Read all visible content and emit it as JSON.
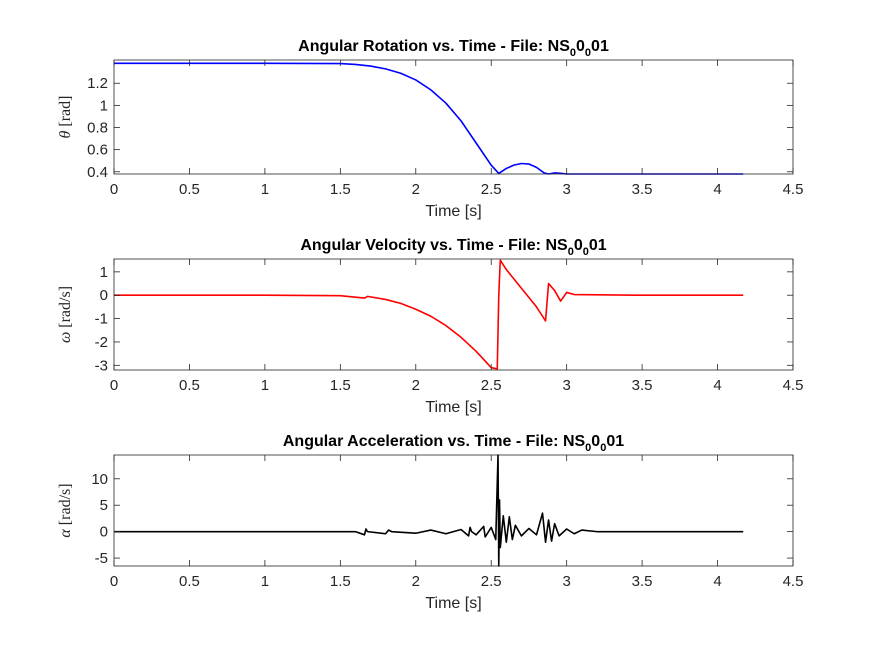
{
  "file_name": "NS_0_0_01",
  "chart_data": [
    {
      "type": "line",
      "title_main": "Angular Rotation vs. Time - File: NS",
      "title_sub1": "0",
      "title_mid": "0",
      "title_sub2": "0",
      "title_end": "01",
      "xlabel": "Time [s]",
      "ylabel_symbol": "θ",
      "ylabel_unit": "[rad]",
      "xlim": [
        0,
        4.5
      ],
      "ylim": [
        0.38,
        1.41
      ],
      "xticks": [
        "0",
        "0.5",
        "1",
        "1.5",
        "2",
        "2.5",
        "3",
        "3.5",
        "4",
        "4.5"
      ],
      "yticks": [
        "0.4",
        "0.6",
        "0.8",
        "1",
        "1.2"
      ],
      "series": [
        {
          "name": "theta",
          "color": "#0000ff",
          "x": [
            0,
            0.5,
            1.0,
            1.5,
            1.6,
            1.7,
            1.8,
            1.9,
            2.0,
            2.1,
            2.2,
            2.3,
            2.4,
            2.5,
            2.55,
            2.6,
            2.65,
            2.7,
            2.75,
            2.8,
            2.85,
            2.88,
            2.92,
            2.96,
            3.0,
            3.5,
            4.17
          ],
          "y": [
            1.38,
            1.38,
            1.38,
            1.378,
            1.37,
            1.355,
            1.33,
            1.29,
            1.23,
            1.14,
            1.02,
            0.86,
            0.66,
            0.46,
            0.385,
            0.43,
            0.46,
            0.475,
            0.47,
            0.44,
            0.39,
            0.38,
            0.39,
            0.386,
            0.38,
            0.38,
            0.38
          ]
        }
      ]
    },
    {
      "type": "line",
      "title_main": "Angular Velocity vs. Time - File: NS",
      "title_sub1": "0",
      "title_mid": "0",
      "title_sub2": "0",
      "title_end": "01",
      "xlabel": "Time [s]",
      "ylabel_symbol": "ω",
      "ylabel_unit": "[rad/s]",
      "xlim": [
        0,
        4.5
      ],
      "ylim": [
        -3.2,
        1.55
      ],
      "xticks": [
        "0",
        "0.5",
        "1",
        "1.5",
        "2",
        "2.5",
        "3",
        "3.5",
        "4",
        "4.5"
      ],
      "yticks": [
        "-3",
        "-2",
        "-1",
        "0",
        "1"
      ],
      "series": [
        {
          "name": "omega",
          "color": "#ff0000",
          "x": [
            0,
            1.0,
            1.5,
            1.66,
            1.68,
            1.8,
            1.9,
            2.0,
            2.1,
            2.2,
            2.3,
            2.4,
            2.45,
            2.5,
            2.54,
            2.55,
            2.56,
            2.6,
            2.65,
            2.7,
            2.75,
            2.8,
            2.84,
            2.86,
            2.88,
            2.92,
            2.96,
            3.0,
            3.05,
            3.5,
            4.17
          ],
          "y": [
            0,
            0,
            -0.02,
            -0.12,
            -0.05,
            -0.18,
            -0.35,
            -0.6,
            -0.9,
            -1.3,
            -1.8,
            -2.4,
            -2.75,
            -3.1,
            -3.15,
            0,
            1.5,
            1.1,
            0.7,
            0.3,
            -0.1,
            -0.5,
            -0.9,
            -1.1,
            0.5,
            0.2,
            -0.25,
            0.12,
            0.03,
            0,
            0
          ]
        }
      ]
    },
    {
      "type": "line",
      "title_main": "Angular Acceleration vs. Time - File: NS",
      "title_sub1": "0",
      "title_mid": "0",
      "title_sub2": "0",
      "title_end": "01",
      "xlabel": "Time [s]",
      "ylabel_symbol": "α",
      "ylabel_unit": "[rad/s]",
      "xlim": [
        0,
        4.5
      ],
      "ylim": [
        -6.5,
        14.5
      ],
      "xticks": [
        "0",
        "0.5",
        "1",
        "1.5",
        "2",
        "2.5",
        "3",
        "3.5",
        "4",
        "4.5"
      ],
      "yticks": [
        "-5",
        "0",
        "5",
        "10"
      ],
      "series": [
        {
          "name": "alpha",
          "color": "#000000",
          "x": [
            0,
            1.0,
            1.6,
            1.66,
            1.67,
            1.68,
            1.8,
            1.82,
            1.84,
            2.0,
            2.1,
            2.2,
            2.3,
            2.35,
            2.36,
            2.37,
            2.4,
            2.45,
            2.46,
            2.5,
            2.53,
            2.545,
            2.55,
            2.555,
            2.56,
            2.58,
            2.6,
            2.62,
            2.64,
            2.66,
            2.7,
            2.75,
            2.8,
            2.84,
            2.86,
            2.88,
            2.9,
            2.92,
            2.95,
            3.0,
            3.05,
            3.1,
            3.2,
            4.17
          ],
          "y": [
            0,
            0,
            0,
            -0.6,
            0.5,
            0,
            -0.4,
            0.3,
            0,
            -0.3,
            0.3,
            -0.4,
            0.4,
            -0.8,
            0.8,
            0,
            -0.6,
            1.0,
            -1.0,
            0.8,
            -1.5,
            14.5,
            -6.5,
            6,
            -3,
            3,
            -2,
            2.8,
            -1.5,
            1.2,
            -0.8,
            0.6,
            -0.6,
            3.5,
            -2,
            2.2,
            -1.8,
            1.5,
            -0.8,
            0.5,
            -0.4,
            0.3,
            0,
            0
          ]
        }
      ]
    }
  ]
}
